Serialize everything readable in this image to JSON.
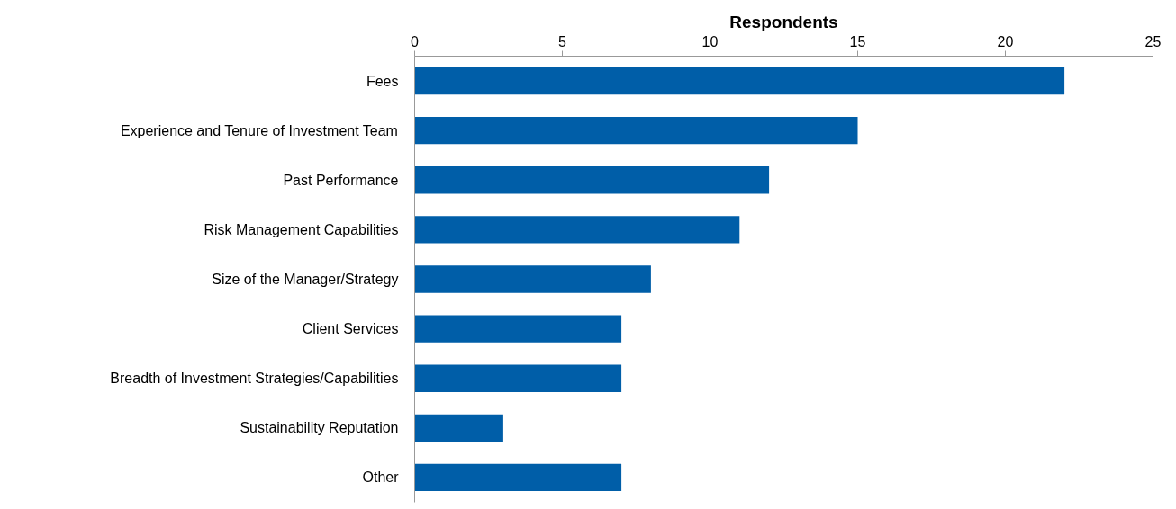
{
  "chart_data": {
    "type": "bar",
    "orientation": "horizontal",
    "xlabel": "Respondents",
    "categories": [
      "Fees",
      "Experience and Tenure of Investment Team",
      "Past Performance",
      "Risk Management Capabilities",
      "Size of the Manager/Strategy",
      "Client Services",
      "Breadth of Investment Strategies/Capabilities",
      "Sustainability Reputation",
      "Other"
    ],
    "values": [
      22,
      15,
      12,
      11,
      8,
      7,
      7,
      3,
      7
    ],
    "color": "#005ea8",
    "xlim": [
      0,
      25
    ],
    "xticks": [
      0,
      5,
      10,
      15,
      20,
      25
    ],
    "grid": false
  }
}
